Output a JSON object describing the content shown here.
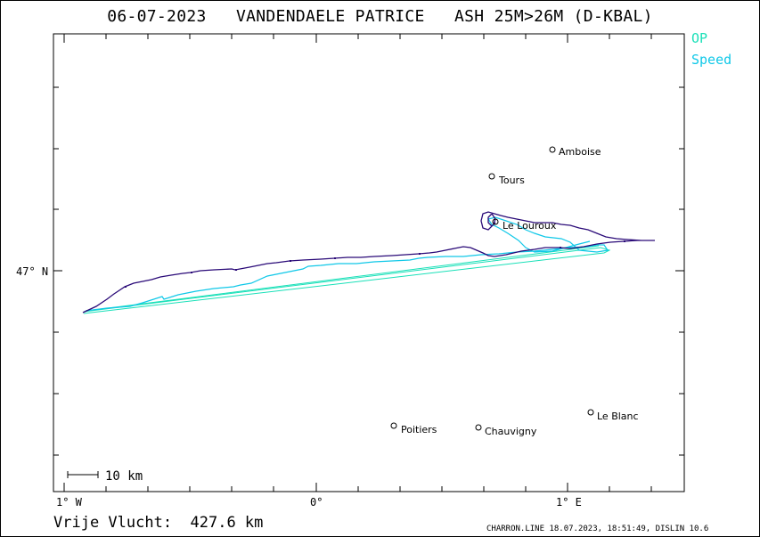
{
  "header": {
    "title": "06-07-2023   VANDENDAELE PATRICE   ASH 25M>26M (D-KBAL)"
  },
  "legend": {
    "items": [
      {
        "label": "OP",
        "color": "#19e0b8"
      },
      {
        "label": "Speed",
        "color": "#10c8e8"
      }
    ]
  },
  "axes": {
    "x_ticks": [
      "1° W",
      "0°",
      "1° E"
    ],
    "y_tick": "47° N"
  },
  "scale_bar": {
    "label": "10 km"
  },
  "cities": [
    {
      "name": "Amboise"
    },
    {
      "name": "Tours"
    },
    {
      "name": "Le Louroux"
    },
    {
      "name": "Poitiers"
    },
    {
      "name": "Chauvigny"
    },
    {
      "name": "Le Blanc"
    }
  ],
  "summary": {
    "distance_text": "Vrije Vlucht:  427.6 km"
  },
  "footer": {
    "text": "CHARRON.LINE 18.07.2023, 18:51:49, DISLIN 10.6"
  },
  "colors": {
    "track": "#2a0a78",
    "op": "#19e0b8",
    "speed": "#10c8e8"
  }
}
